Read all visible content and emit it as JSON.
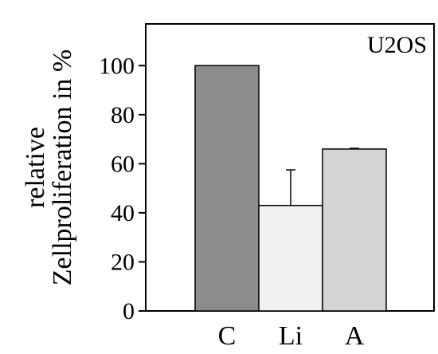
{
  "chart_data": {
    "type": "bar",
    "title": "",
    "inset_label": "U2OS",
    "ylabel_lines": [
      "relative",
      "Zellproliferation in %"
    ],
    "xlabel": "",
    "categories": [
      "C",
      "Li",
      "A"
    ],
    "values": [
      100,
      43,
      66
    ],
    "error_upper": [
      0,
      57.5,
      66.3
    ],
    "ylim": [
      0,
      117
    ],
    "yticks": [
      0,
      20,
      40,
      60,
      80,
      100
    ],
    "bar_colors": [
      "#8c8c8c",
      "#f1f1f1",
      "#d4d4d4"
    ],
    "grid": false,
    "legend": "none"
  }
}
